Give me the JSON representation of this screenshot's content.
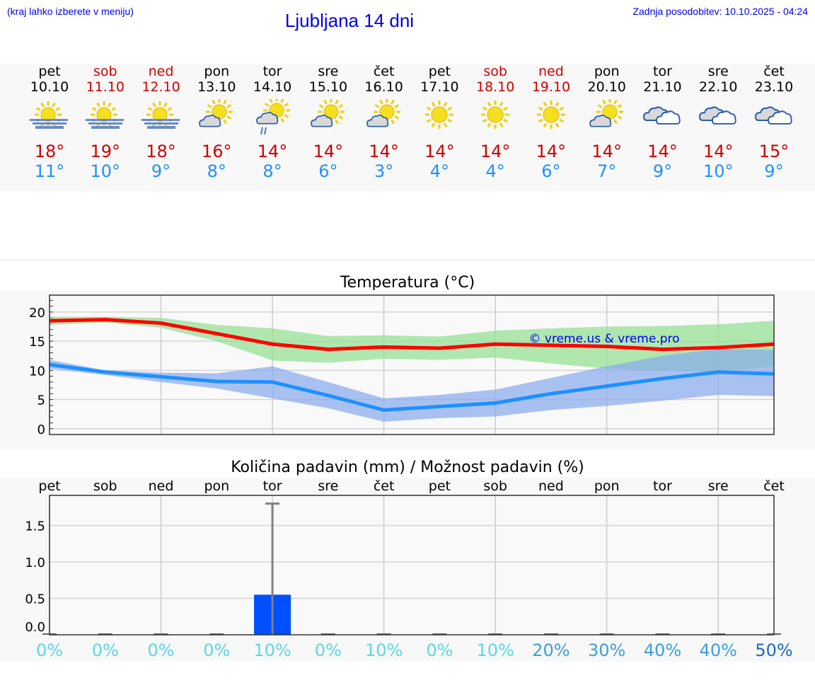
{
  "header": {
    "hint": "(kraj lahko izberete v meniju)",
    "title": "Ljubljana 14 dni",
    "updated": "Zadnja posodobitev: 10.10.2025 - 04:24"
  },
  "forecast": [
    {
      "day": "pet",
      "date": "10.10",
      "weekend": false,
      "icon": "fog-sun-icon",
      "max": "18°",
      "min": "11°"
    },
    {
      "day": "sob",
      "date": "11.10",
      "weekend": true,
      "icon": "fog-sun-icon",
      "max": "19°",
      "min": "10°"
    },
    {
      "day": "ned",
      "date": "12.10",
      "weekend": true,
      "icon": "fog-sun-icon",
      "max": "18°",
      "min": "9°"
    },
    {
      "day": "pon",
      "date": "13.10",
      "weekend": false,
      "icon": "partly-cloudy-icon",
      "max": "16°",
      "min": "8°"
    },
    {
      "day": "tor",
      "date": "14.10",
      "weekend": false,
      "icon": "partly-cloudy-rain-icon",
      "max": "14°",
      "min": "8°"
    },
    {
      "day": "sre",
      "date": "15.10",
      "weekend": false,
      "icon": "partly-cloudy-icon",
      "max": "14°",
      "min": "6°"
    },
    {
      "day": "čet",
      "date": "16.10",
      "weekend": false,
      "icon": "partly-cloudy-icon",
      "max": "14°",
      "min": "3°"
    },
    {
      "day": "pet",
      "date": "17.10",
      "weekend": false,
      "icon": "sun-icon",
      "max": "14°",
      "min": "4°"
    },
    {
      "day": "sob",
      "date": "18.10",
      "weekend": true,
      "icon": "sun-icon",
      "max": "14°",
      "min": "4°"
    },
    {
      "day": "ned",
      "date": "19.10",
      "weekend": true,
      "icon": "sun-icon",
      "max": "14°",
      "min": "6°"
    },
    {
      "day": "pon",
      "date": "20.10",
      "weekend": false,
      "icon": "partly-cloudy-icon",
      "max": "14°",
      "min": "7°"
    },
    {
      "day": "tor",
      "date": "21.10",
      "weekend": false,
      "icon": "cloudy-icon",
      "max": "14°",
      "min": "9°"
    },
    {
      "day": "sre",
      "date": "22.10",
      "weekend": false,
      "icon": "cloudy-icon",
      "max": "14°",
      "min": "10°"
    },
    {
      "day": "čet",
      "date": "23.10",
      "weekend": false,
      "icon": "cloudy-icon",
      "max": "15°",
      "min": "9°"
    }
  ],
  "chart_data": [
    {
      "type": "line",
      "title": "Temperatura (°C)",
      "ylim": [
        -1,
        22.9
      ],
      "yticks": [
        "0",
        "5",
        "10",
        "15",
        "20"
      ],
      "grid": true,
      "watermark": "© vreme.us & vreme.pro",
      "x": [
        "10.10",
        "11.10",
        "12.10",
        "13.10",
        "14.10",
        "15.10",
        "16.10",
        "17.10",
        "18.10",
        "19.10",
        "20.10",
        "21.10",
        "22.10",
        "23.10"
      ],
      "series": [
        {
          "values": [
            18.5,
            18.7,
            18.1,
            16.3,
            14.5,
            13.6,
            14.0,
            13.8,
            14.5,
            14.3,
            14.1,
            13.6,
            13.9,
            14.5
          ],
          "band_low": [
            17.8,
            18.2,
            17.3,
            15.0,
            11.7,
            11.3,
            12.0,
            11.8,
            12.2,
            11.2,
            10.3,
            9.9,
            9.8,
            10.6
          ],
          "band_high": [
            19.2,
            19.2,
            19.0,
            17.8,
            17.2,
            15.9,
            16.0,
            15.8,
            16.8,
            17.2,
            17.5,
            17.6,
            17.9,
            18.5
          ],
          "color": "#ff0000",
          "band_color": "#90e090"
        },
        {
          "values": [
            11.0,
            9.7,
            8.9,
            8.1,
            8.0,
            5.7,
            3.2,
            3.8,
            4.4,
            6.0,
            7.3,
            8.6,
            9.7,
            9.4
          ],
          "band_low": [
            10.3,
            9.2,
            8.0,
            6.9,
            5.2,
            3.5,
            1.2,
            1.8,
            2.1,
            3.2,
            3.9,
            4.8,
            5.8,
            5.6
          ],
          "band_high": [
            11.8,
            10.0,
            9.6,
            9.5,
            10.7,
            8.0,
            5.2,
            5.8,
            6.7,
            8.7,
            10.7,
            12.5,
            13.7,
            13.5
          ],
          "color": "#1e90ff",
          "band_color": "#88aaee"
        }
      ]
    },
    {
      "type": "bar",
      "title": "Količina padavin (mm) / Možnost padavin (%)",
      "ylim": [
        -0.1,
        1.91
      ],
      "yticks": [
        "0.0",
        "0.5",
        "1.0",
        "1.5"
      ],
      "grid": true,
      "categories": [
        "pet",
        "sob",
        "ned",
        "pon",
        "tor",
        "sre",
        "čet",
        "pet",
        "sob",
        "ned",
        "pon",
        "tor",
        "sre",
        "čet"
      ],
      "values": [
        0,
        0,
        0,
        0,
        0.55,
        0,
        0,
        0,
        0,
        0,
        0,
        0,
        0,
        0
      ],
      "error_high": [
        0,
        0,
        0,
        0,
        1.8,
        0,
        0,
        0,
        0,
        0,
        0,
        0,
        0,
        0
      ],
      "probability": [
        "0%",
        "0%",
        "0%",
        "0%",
        "10%",
        "0%",
        "10%",
        "0%",
        "10%",
        "20%",
        "30%",
        "40%",
        "40%",
        "50%"
      ],
      "bar_color": "#0050ff"
    }
  ]
}
